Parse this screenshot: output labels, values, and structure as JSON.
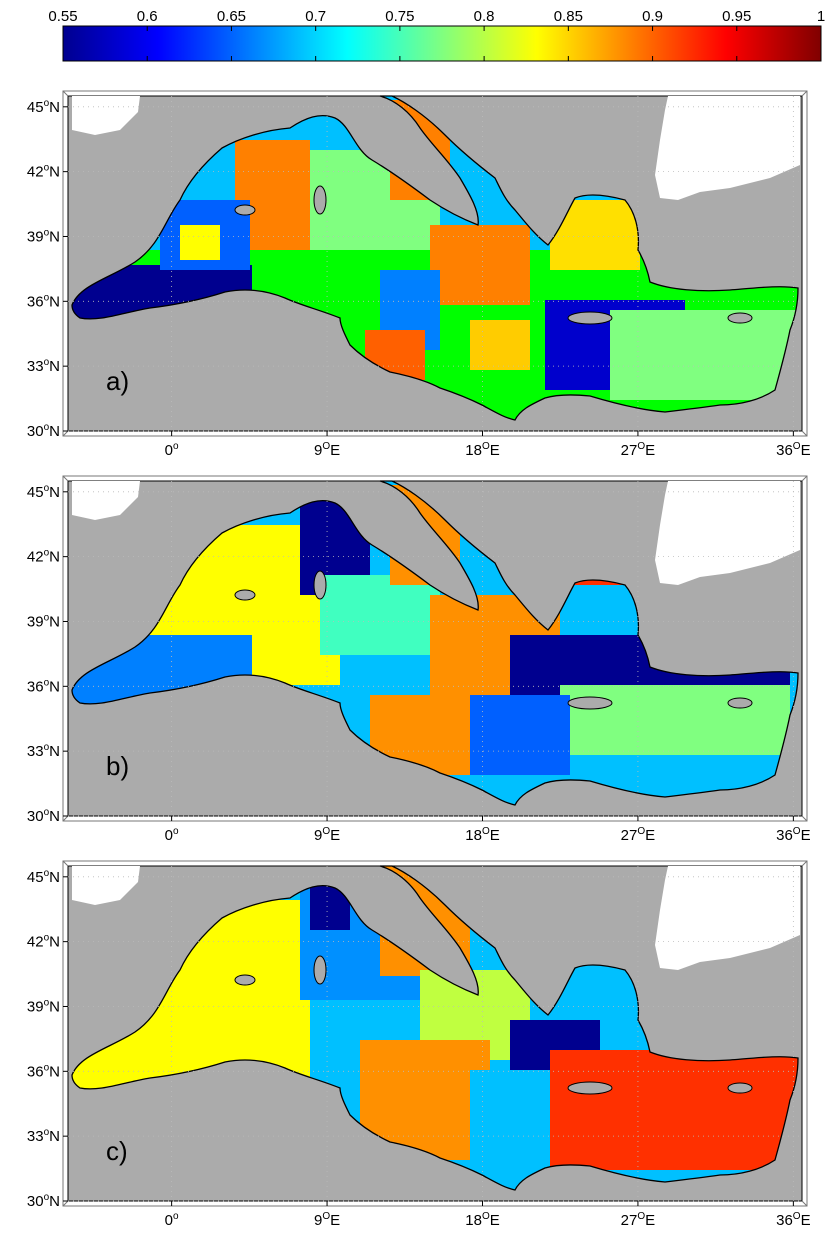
{
  "colorbar": {
    "ticks": [
      "0.55",
      "0.6",
      "0.65",
      "0.7",
      "0.75",
      "0.8",
      "0.85",
      "0.9",
      "0.95",
      "1"
    ],
    "min": 0.55,
    "max": 1,
    "colormap": "jet"
  },
  "map_axes": {
    "lat_ticks": [
      {
        "deg": "45",
        "sup": "o",
        "hem": "N"
      },
      {
        "deg": "42",
        "sup": "o",
        "hem": "N"
      },
      {
        "deg": "39",
        "sup": "o",
        "hem": "N"
      },
      {
        "deg": "36",
        "sup": "o",
        "hem": "N"
      },
      {
        "deg": "33",
        "sup": "o",
        "hem": "N"
      },
      {
        "deg": "30",
        "sup": "o",
        "hem": "N"
      }
    ],
    "lon_ticks": [
      {
        "deg": "0",
        "sup": "o",
        "hem": ""
      },
      {
        "deg": "9",
        "sup": "O",
        "hem": "E"
      },
      {
        "deg": "18",
        "sup": "O",
        "hem": "E"
      },
      {
        "deg": "27",
        "sup": "O",
        "hem": "E"
      },
      {
        "deg": "36",
        "sup": "O",
        "hem": "E"
      }
    ],
    "lon_range": [
      -6,
      36.5
    ],
    "lat_range": [
      30,
      45.5
    ]
  },
  "panels": [
    {
      "label": "a)"
    },
    {
      "label": "b)"
    },
    {
      "label": "c)"
    }
  ],
  "colors": {
    "land": "#ababab",
    "outside": "#ffffff",
    "coast": "#000000"
  }
}
